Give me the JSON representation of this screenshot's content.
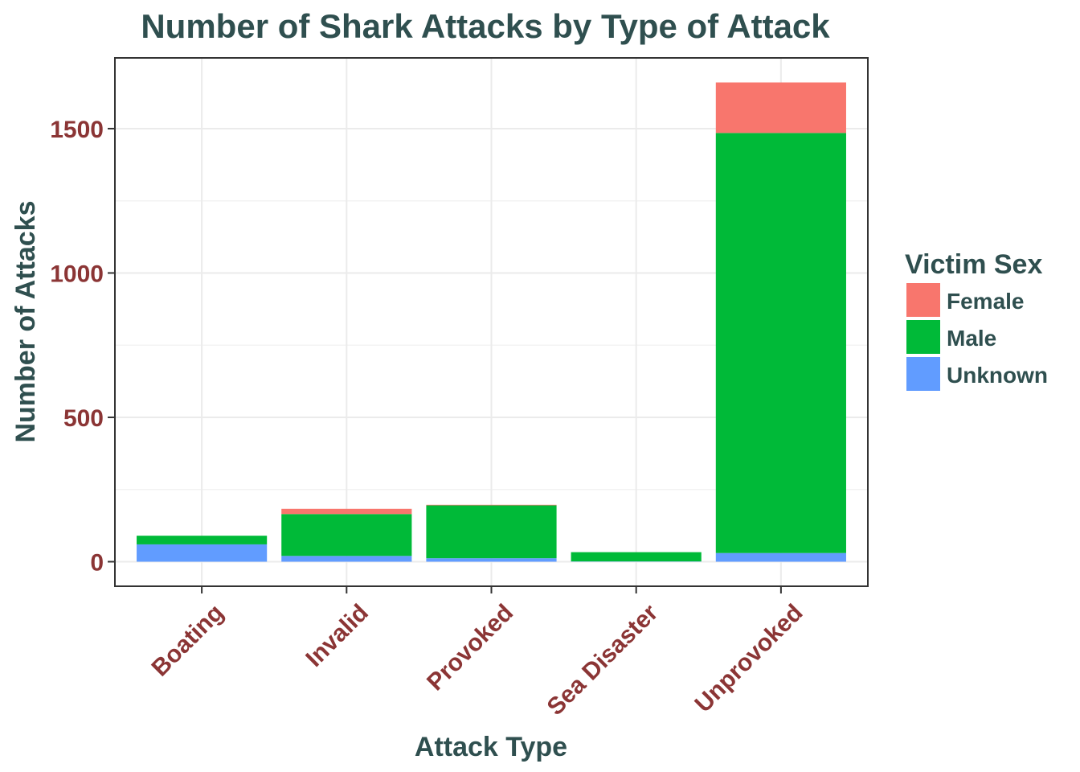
{
  "chart_data": {
    "type": "bar",
    "stacked": true,
    "title": "Number of Shark Attacks by Type of Attack",
    "xlabel": "Attack Type",
    "ylabel": "Number of Attacks",
    "categories": [
      "Boating",
      "Invalid",
      "Provoked",
      "Sea Disaster",
      "Unprovoked"
    ],
    "series": [
      {
        "name": "Unknown",
        "color": "#619cff",
        "values": [
          60,
          20,
          12,
          1,
          30
        ]
      },
      {
        "name": "Male",
        "color": "#00ba38",
        "values": [
          30,
          145,
          183,
          32,
          1455
        ]
      },
      {
        "name": "Female",
        "color": "#f8766d",
        "values": [
          0,
          18,
          2,
          0,
          175
        ]
      }
    ],
    "ylim": [
      -85,
      1745
    ],
    "yticks": [
      0,
      500,
      1000,
      1500
    ],
    "ytick_labels": [
      "0",
      "500",
      "1000",
      "1500"
    ],
    "grid": true,
    "legend": {
      "title": "Victim Sex",
      "position": "right",
      "entries": [
        {
          "label": "Female",
          "color": "#f8766d"
        },
        {
          "label": "Male",
          "color": "#00ba38"
        },
        {
          "label": "Unknown",
          "color": "#619cff"
        }
      ]
    }
  }
}
